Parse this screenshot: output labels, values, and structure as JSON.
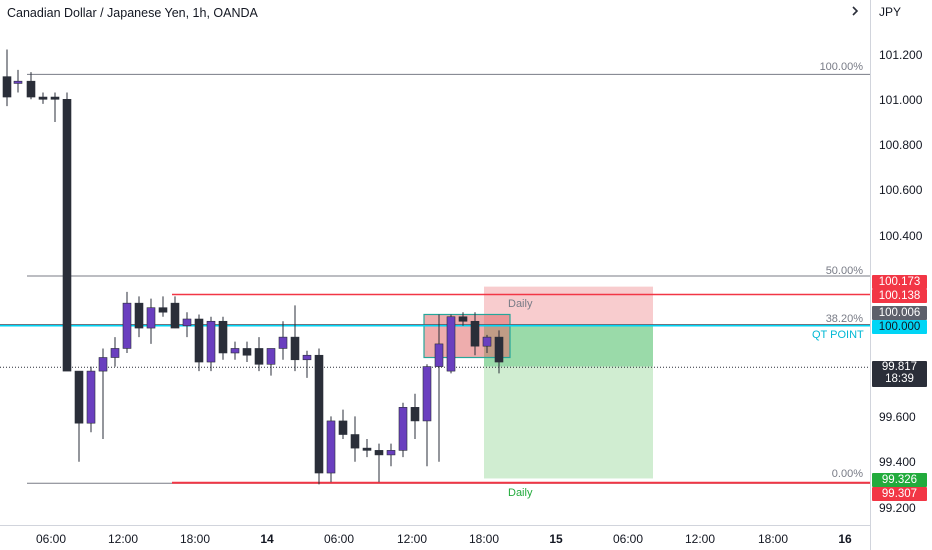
{
  "header": {
    "title": "Canadian Dollar / Japanese Yen, 1h, OANDA"
  },
  "price_axis": {
    "currency": "JPY",
    "ticks": [
      "101.200",
      "101.000",
      "100.800",
      "100.600",
      "100.400",
      "99.600",
      "99.400",
      "99.200"
    ],
    "tags": {
      "red_top": "100.173",
      "red_line": "100.138",
      "fib_382": "100.006",
      "qt_point": "100.000",
      "last_price": "99.817",
      "countdown": "18:39",
      "green_level": "99.326",
      "red_bottom": "99.307"
    }
  },
  "time_axis": {
    "labels": [
      "06:00",
      "12:00",
      "18:00",
      "14",
      "06:00",
      "12:00",
      "18:00",
      "15",
      "06:00",
      "12:00",
      "18:00",
      "16"
    ],
    "bold": [
      false,
      false,
      false,
      true,
      false,
      false,
      false,
      true,
      false,
      false,
      false,
      true
    ]
  },
  "fibonacci": {
    "levels": [
      "100.00%",
      "50.00%",
      "38.20%",
      "0.00%"
    ]
  },
  "annotations": {
    "qt_point_label": "QT POINT",
    "daily_top": "Daily",
    "daily_bottom": "Daily"
  },
  "colors": {
    "bull": "#6a3fbf",
    "bear": "#2a2e39",
    "red_level": "#f23645",
    "cyan_level": "#00d5f5",
    "loss_zone": "#f7c3c6",
    "profit_zone_dark": "#8fd6a0",
    "profit_zone_light": "#cdeccf",
    "fib_line": "#787b86"
  },
  "icons": {
    "scroll": "chevron-right-icon"
  }
}
